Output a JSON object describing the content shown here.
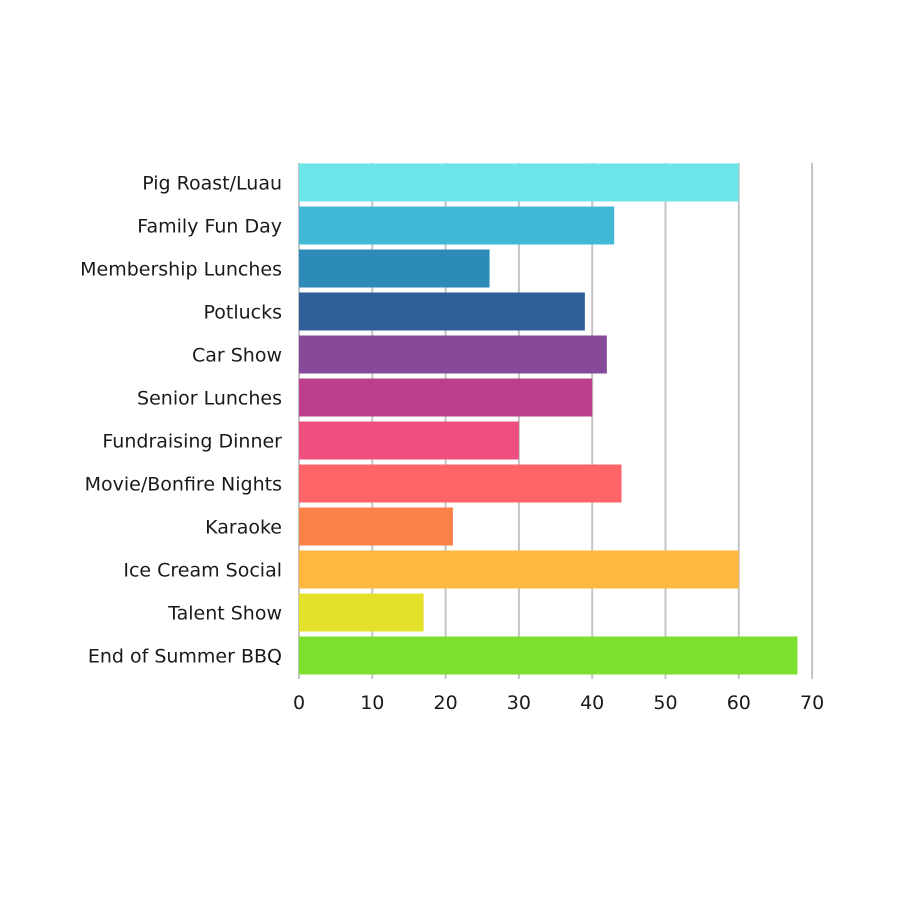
{
  "chart_data": {
    "type": "bar",
    "orientation": "horizontal",
    "categories": [
      "Pig Roast/Luau",
      "Family Fun Day",
      "Membership Lunches",
      "Potlucks",
      "Car Show",
      "Senior Lunches",
      "Fundraising Dinner",
      "Movie/Bonfire Nights",
      "Karaoke",
      "Ice Cream Social",
      "Talent Show",
      "End of Summer BBQ"
    ],
    "values": [
      60,
      43,
      26,
      39,
      42,
      40,
      30,
      44,
      21,
      60,
      17,
      68
    ],
    "colors": [
      "#6ce5e8",
      "#41b8d5",
      "#2d8bba",
      "#2f5f98",
      "#874a9b",
      "#bd3f8b",
      "#ef4f7f",
      "#fe6468",
      "#fd8249",
      "#feb73f",
      "#e3e12a",
      "#7ee02e"
    ],
    "xlim": [
      0,
      70
    ],
    "xticks": [
      0,
      10,
      20,
      30,
      40,
      50,
      60,
      70
    ],
    "title": "",
    "xlabel": "",
    "ylabel": "",
    "grid": true,
    "legend": "none"
  }
}
